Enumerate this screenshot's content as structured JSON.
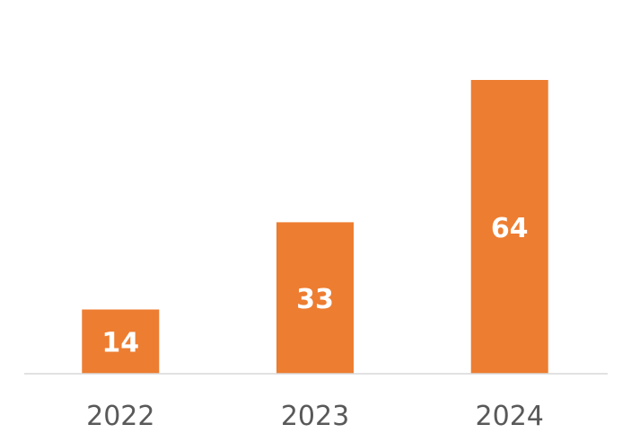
{
  "chart_data": {
    "type": "bar",
    "categories": [
      "2022",
      "2023",
      "2024"
    ],
    "values": [
      14,
      33,
      64
    ],
    "data_labels": [
      "14",
      "33",
      "64"
    ],
    "title": "",
    "xlabel": "",
    "ylabel": "",
    "ylim": [
      0,
      70
    ],
    "grid": false,
    "legend": "none",
    "colors": {
      "bar": "#ED7D31",
      "data_label": "#FFFFFF",
      "tick_label": "#595959",
      "baseline": "#D9D9D9"
    }
  }
}
